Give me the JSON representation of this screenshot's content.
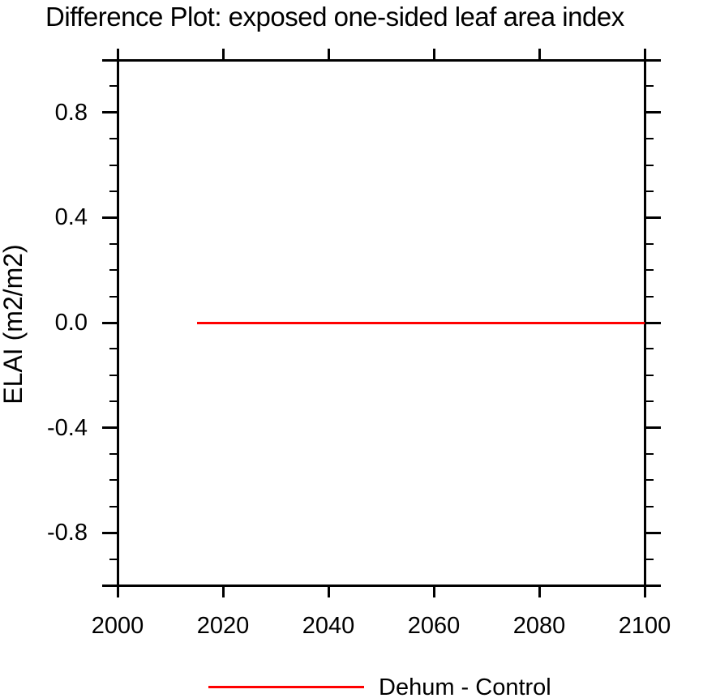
{
  "chart_data": {
    "type": "line",
    "title": "Difference Plot: exposed one-sided leaf area index",
    "xlabel": "",
    "ylabel": "ELAI  (m2/m2)",
    "xlim": [
      2000,
      2100
    ],
    "ylim": [
      -1.0,
      1.0
    ],
    "grid": false,
    "x_major_ticks": [
      {
        "v": 2000,
        "label": "2000"
      },
      {
        "v": 2020,
        "label": "2020"
      },
      {
        "v": 2040,
        "label": "2040"
      },
      {
        "v": 2060,
        "label": "2060"
      },
      {
        "v": 2080,
        "label": "2080"
      },
      {
        "v": 2100,
        "label": "2100"
      }
    ],
    "y_major_ticks": [
      {
        "v": 1.0,
        "label": ""
      },
      {
        "v": 0.8,
        "label": "0.8"
      },
      {
        "v": 0.4,
        "label": "0.4"
      },
      {
        "v": 0.0,
        "label": "0.0"
      },
      {
        "v": -0.4,
        "label": "-0.4"
      },
      {
        "v": -0.8,
        "label": "-0.8"
      },
      {
        "v": -1.0,
        "label": ""
      }
    ],
    "y_minor_step": 0.1,
    "series": [
      {
        "name": "Dehum - Control",
        "color": "#ff0000",
        "x": [
          2015,
          2100
        ],
        "y": [
          0.0,
          0.0
        ]
      }
    ],
    "legend": {
      "position": "bottom",
      "entries": [
        {
          "label": "Dehum - Control",
          "color": "#ff0000"
        }
      ]
    },
    "colors": {
      "axis": "#000000",
      "text": "#000000",
      "background": "#ffffff",
      "series_red": "#ff0000"
    }
  }
}
